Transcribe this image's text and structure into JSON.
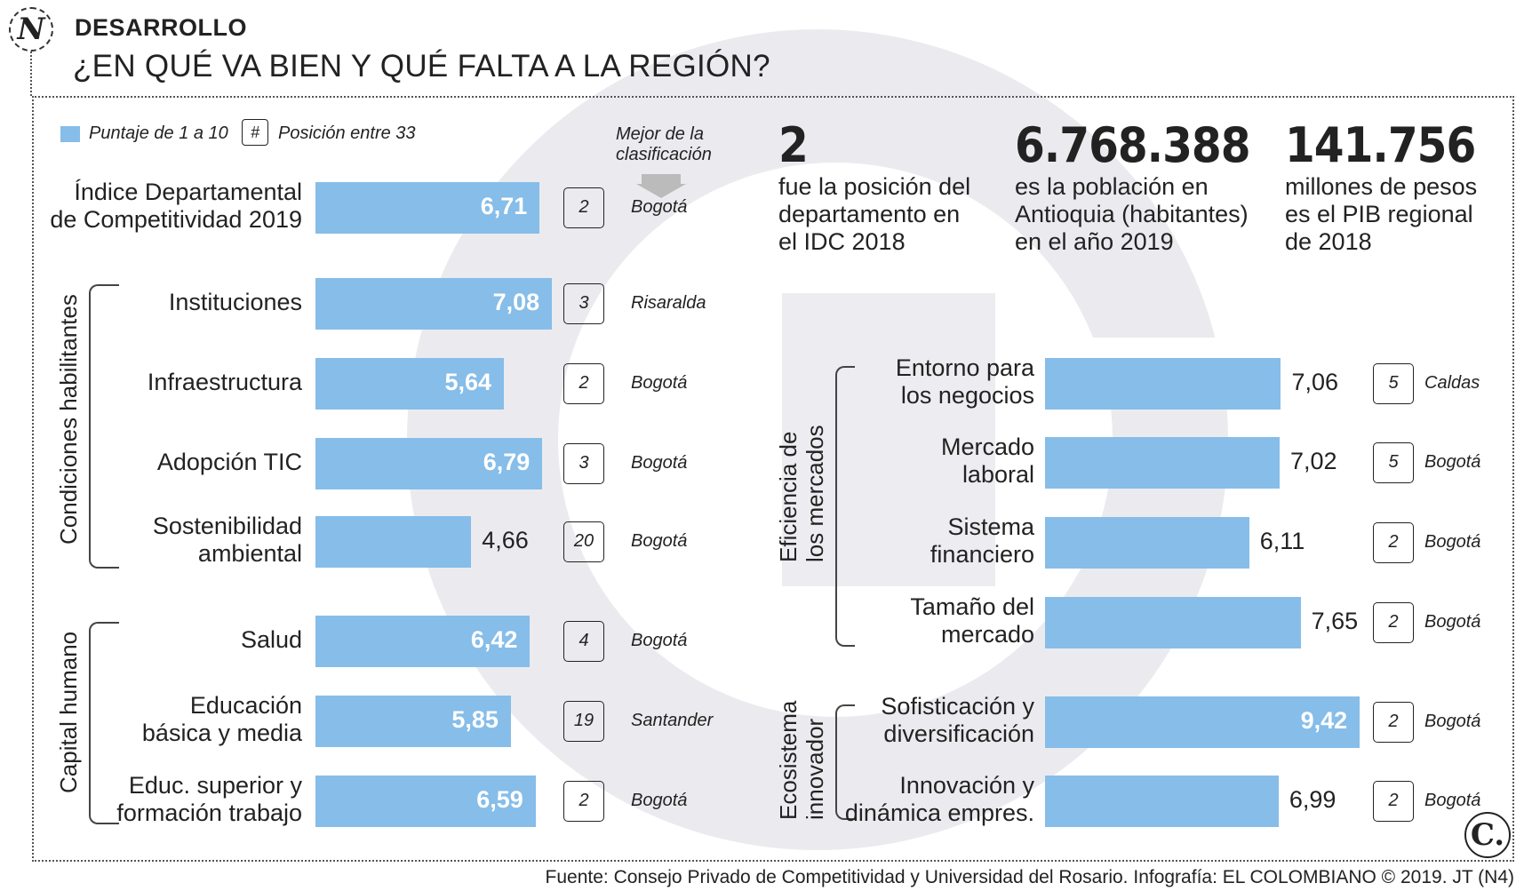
{
  "header": {
    "section": "DESARROLLO",
    "title": "¿EN QUÉ VA BIEN Y QUÉ FALTA A LA REGIÓN?",
    "logo_letter": "N"
  },
  "legend": {
    "score_label": "Puntaje de 1 a 10",
    "rank_symbol": "#",
    "rank_label": "Posición entre 33",
    "best_label_line1": "Mejor de la",
    "best_label_line2": "clasificación"
  },
  "stats": [
    {
      "value": "2",
      "lines": [
        "fue la posición del",
        "departamento en",
        "el IDC 2018"
      ]
    },
    {
      "value": "6.768.388",
      "lines": [
        "es la población en",
        "Antioquia (habitantes)",
        "en el año 2019"
      ]
    },
    {
      "value": "141.756",
      "lines": [
        "millones de pesos",
        "es el PIB regional",
        "de 2018"
      ]
    }
  ],
  "groups": {
    "condiciones": "Condiciones habilitantes",
    "capital": "Capital humano",
    "eficiencia_line1": "Eficiencia de",
    "eficiencia_line2": "los mercados",
    "ecosistema_line1": "Ecosistema",
    "ecosistema_line2": "innovador"
  },
  "chart_data": {
    "type": "bar",
    "orientation": "horizontal",
    "title": "¿EN QUÉ VA BIEN Y QUÉ FALTA A LA REGIÓN?",
    "value_scale": "Puntaje de 1 a 10",
    "xlim": [
      0,
      10
    ],
    "left_rows": [
      {
        "label_lines": [
          "Índice Departamental",
          "de Competitividad 2019"
        ],
        "value": 6.71,
        "value_label": "6,71",
        "rank": "2",
        "best": "Bogotá"
      },
      {
        "label_lines": [
          "Instituciones"
        ],
        "value": 7.08,
        "value_label": "7,08",
        "rank": "3",
        "best": "Risaralda"
      },
      {
        "label_lines": [
          "Infraestructura"
        ],
        "value": 5.64,
        "value_label": "5,64",
        "rank": "2",
        "best": "Bogotá"
      },
      {
        "label_lines": [
          "Adopción TIC"
        ],
        "value": 6.79,
        "value_label": "6,79",
        "rank": "3",
        "best": "Bogotá"
      },
      {
        "label_lines": [
          "Sostenibilidad",
          "ambiental"
        ],
        "value": 4.66,
        "value_label": "4,66",
        "rank": "20",
        "best": "Bogotá"
      },
      {
        "label_lines": [
          "Salud"
        ],
        "value": 6.42,
        "value_label": "6,42",
        "rank": "4",
        "best": "Bogotá"
      },
      {
        "label_lines": [
          "Educación",
          "básica y media"
        ],
        "value": 5.85,
        "value_label": "5,85",
        "rank": "19",
        "best": "Santander"
      },
      {
        "label_lines": [
          "Educ. superior y",
          "formación trabajo"
        ],
        "value": 6.59,
        "value_label": "6,59",
        "rank": "2",
        "best": "Bogotá"
      }
    ],
    "right_rows": [
      {
        "label_lines": [
          "Entorno para",
          "los negocios"
        ],
        "value": 7.06,
        "value_label": "7,06",
        "rank": "5",
        "best": "Caldas"
      },
      {
        "label_lines": [
          "Mercado",
          "laboral"
        ],
        "value": 7.02,
        "value_label": "7,02",
        "rank": "5",
        "best": "Bogotá"
      },
      {
        "label_lines": [
          "Sistema",
          "financiero"
        ],
        "value": 6.11,
        "value_label": "6,11",
        "rank": "2",
        "best": "Bogotá"
      },
      {
        "label_lines": [
          "Tamaño del",
          "mercado"
        ],
        "value": 7.65,
        "value_label": "7,65",
        "rank": "2",
        "best": "Bogotá"
      },
      {
        "label_lines": [
          "Sofisticación y",
          "diversificación"
        ],
        "value": 9.42,
        "value_label": "9,42",
        "rank": "2",
        "best": "Bogotá"
      },
      {
        "label_lines": [
          "Innovación y",
          "dinámica empres."
        ],
        "value": 6.99,
        "value_label": "6,99",
        "rank": "2",
        "best": "Bogotá"
      }
    ]
  },
  "footer": {
    "source": "Fuente: Consejo Privado de Competitividad y Universidad del Rosario. Infografía: EL COLOMBIANO © 2019. JT (N4)",
    "logo_letter": "C."
  },
  "colors": {
    "bar": "#86bde9",
    "watermark": "#ebebef"
  }
}
